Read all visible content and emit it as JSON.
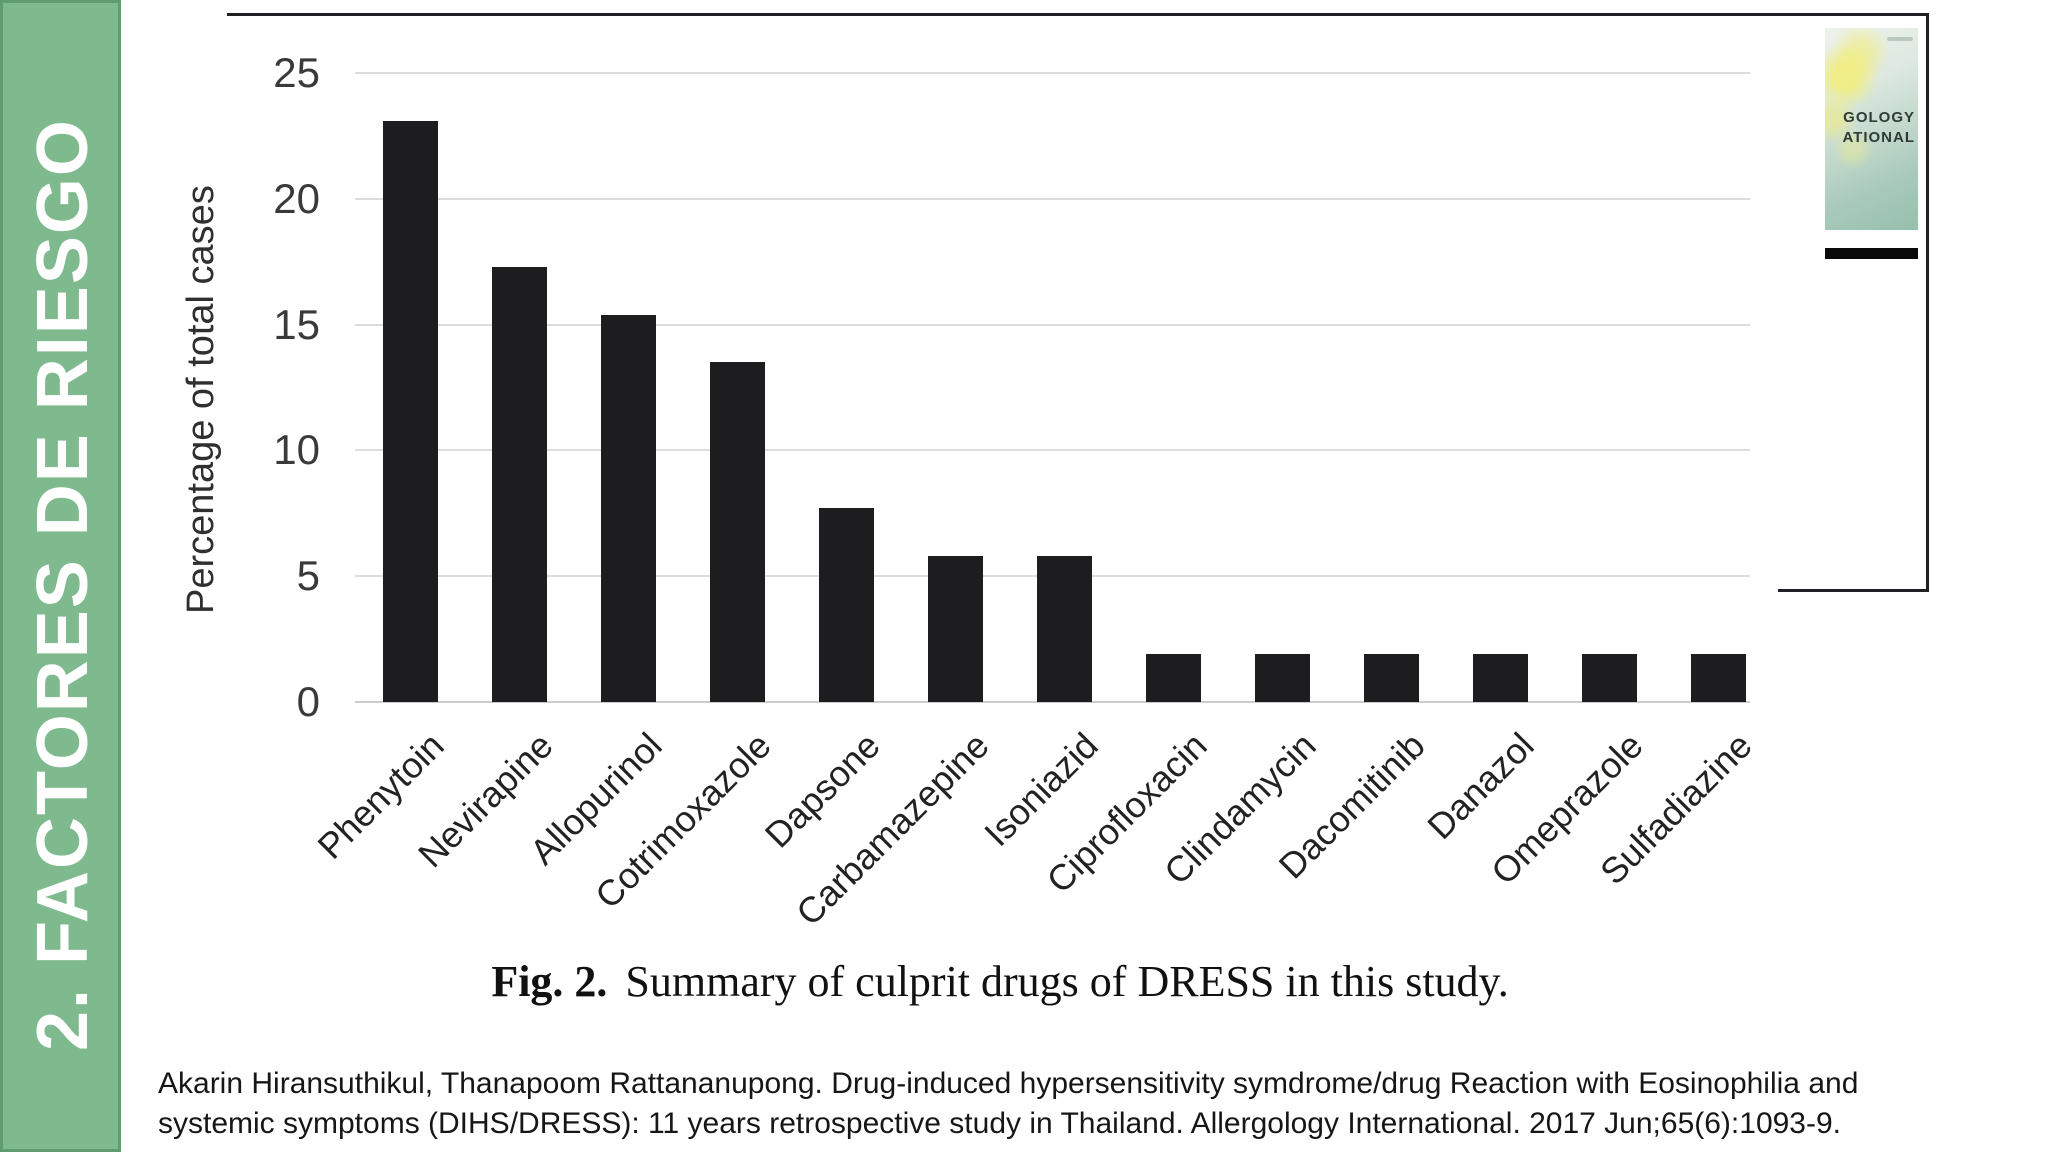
{
  "sidebar": {
    "label": "2. FACTORES DE RIESGO",
    "bg_color": "#7fba8e",
    "border_color": "#5f9c70"
  },
  "chart_data": {
    "type": "bar",
    "categories": [
      "Phenytoin",
      "Nevirapine",
      "Allopurinol",
      "Cotrimoxazole",
      "Dapsone",
      "Carbamazepine",
      "Isoniazid",
      "Ciprofloxacin",
      "Clindamycin",
      "Dacomitinib",
      "Danazol",
      "Omeprazole",
      "Sulfadiazine"
    ],
    "values": [
      23.1,
      17.3,
      15.4,
      13.5,
      7.7,
      5.8,
      5.8,
      1.9,
      1.9,
      1.9,
      1.9,
      1.9,
      1.9
    ],
    "title": "",
    "xlabel": "",
    "ylabel": "Percentage of total cases",
    "yticks": [
      0,
      5,
      10,
      15,
      20,
      25
    ],
    "ylim": [
      0,
      25
    ],
    "grid": true,
    "legend": false,
    "bar_color": "#1d1d1f"
  },
  "caption": {
    "prefix": "Fig. 2.",
    "text": "Summary of culprit drugs of DRESS in this study."
  },
  "citation": {
    "line1": "Akarin Hiransuthikul, Thanapoom Rattananupong. Drug-induced hypersensitivity symdrome/drug Reaction with Eosinophilia and",
    "line2": "systemic symptoms (DIHS/DRESS): 11 years retrospective study in Thailand. Allergology International. 2017 Jun;65(6):1093-9."
  },
  "journal_cover": {
    "title_line1": "GOLOGY",
    "title_line2": "ATIONAL",
    "bar_color": "#0a0a0a"
  }
}
